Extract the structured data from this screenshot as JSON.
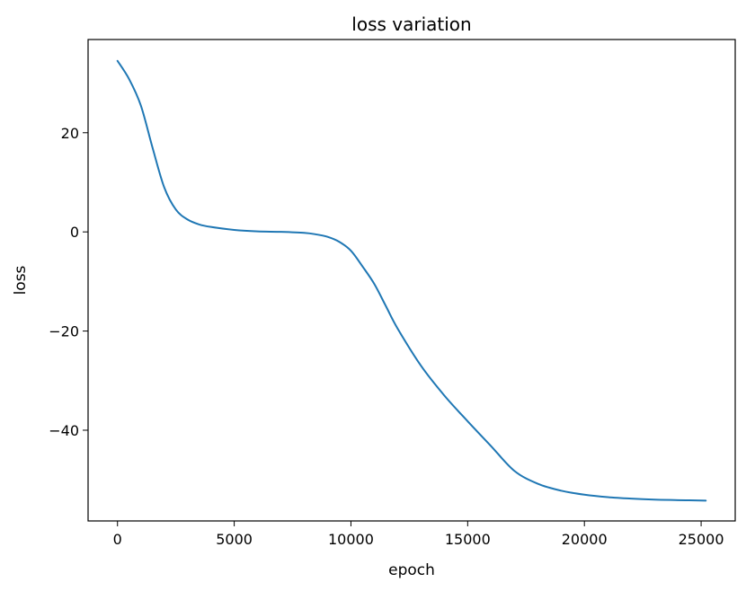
{
  "chart_data": {
    "type": "line",
    "title": "loss variation",
    "xlabel": "epoch",
    "ylabel": "loss",
    "xlim": [
      -1260,
      26460
    ],
    "ylim": [
      -58.3,
      38.8
    ],
    "grid": false,
    "x_ticks": [
      0,
      5000,
      10000,
      15000,
      20000,
      25000
    ],
    "x_tick_labels": [
      "0",
      "5000",
      "10000",
      "15000",
      "20000",
      "25000"
    ],
    "y_ticks": [
      20,
      0,
      -20,
      -40
    ],
    "y_tick_labels": [
      "20",
      "0",
      "−20",
      "−40"
    ],
    "series": [
      {
        "color": "#1f77b4",
        "x": [
          0,
          500,
          1000,
          1500,
          2000,
          2500,
          3000,
          3500,
          4000,
          5000,
          6000,
          7000,
          8000,
          8500,
          9000,
          9500,
          10000,
          10500,
          11000,
          11500,
          12000,
          13000,
          14000,
          15000,
          16000,
          17000,
          18000,
          19000,
          20000,
          21000,
          22000,
          23000,
          24000,
          25200
        ],
        "y": [
          34.5,
          30.8,
          25.5,
          17.0,
          9.0,
          4.5,
          2.5,
          1.5,
          1.0,
          0.4,
          0.1,
          0.0,
          -0.2,
          -0.5,
          -1.0,
          -2.0,
          -3.8,
          -7.0,
          -10.5,
          -15.0,
          -19.5,
          -27.0,
          -33.0,
          -38.2,
          -43.2,
          -48.2,
          -50.8,
          -52.2,
          -53.0,
          -53.5,
          -53.8,
          -54.0,
          -54.1,
          -54.2
        ]
      }
    ]
  }
}
